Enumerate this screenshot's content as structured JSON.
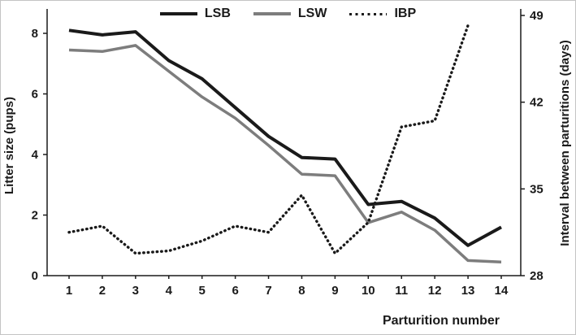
{
  "chart_data": {
    "type": "line",
    "title": "",
    "xlabel": "Parturition number",
    "ylabel_left": "Litter size (pups)",
    "ylabel_right": "Interval between parturitions (days)",
    "x": [
      1,
      2,
      3,
      4,
      5,
      6,
      7,
      8,
      9,
      10,
      11,
      12,
      13,
      14
    ],
    "left_ticks": [
      0,
      2,
      4,
      6,
      8
    ],
    "right_ticks": [
      28,
      35,
      42,
      49
    ],
    "left_range": [
      0,
      8
    ],
    "right_range": [
      28,
      49
    ],
    "grid": "off",
    "legend_position": "top",
    "series": [
      {
        "name": "LSB",
        "axis": "left",
        "style": "solid",
        "color": "#1a1a1a",
        "width": 4,
        "values": [
          8.1,
          7.95,
          8.05,
          7.1,
          6.5,
          5.55,
          4.6,
          3.9,
          3.85,
          2.35,
          2.45,
          1.9,
          1.0,
          1.6
        ]
      },
      {
        "name": "LSW",
        "axis": "left",
        "style": "solid",
        "color": "#7d7d7d",
        "width": 3.5,
        "values": [
          7.45,
          7.4,
          7.6,
          6.75,
          5.9,
          5.2,
          4.3,
          3.35,
          3.3,
          1.75,
          2.1,
          1.5,
          0.5,
          0.45
        ]
      },
      {
        "name": "IBP",
        "axis": "right",
        "style": "dotted",
        "color": "#1a1a1a",
        "width": 3.4,
        "values": [
          31.5,
          32.0,
          29.8,
          30.0,
          30.8,
          32.0,
          31.5,
          34.5,
          29.8,
          32.3,
          40.0,
          40.5,
          48.2,
          null
        ]
      }
    ]
  }
}
